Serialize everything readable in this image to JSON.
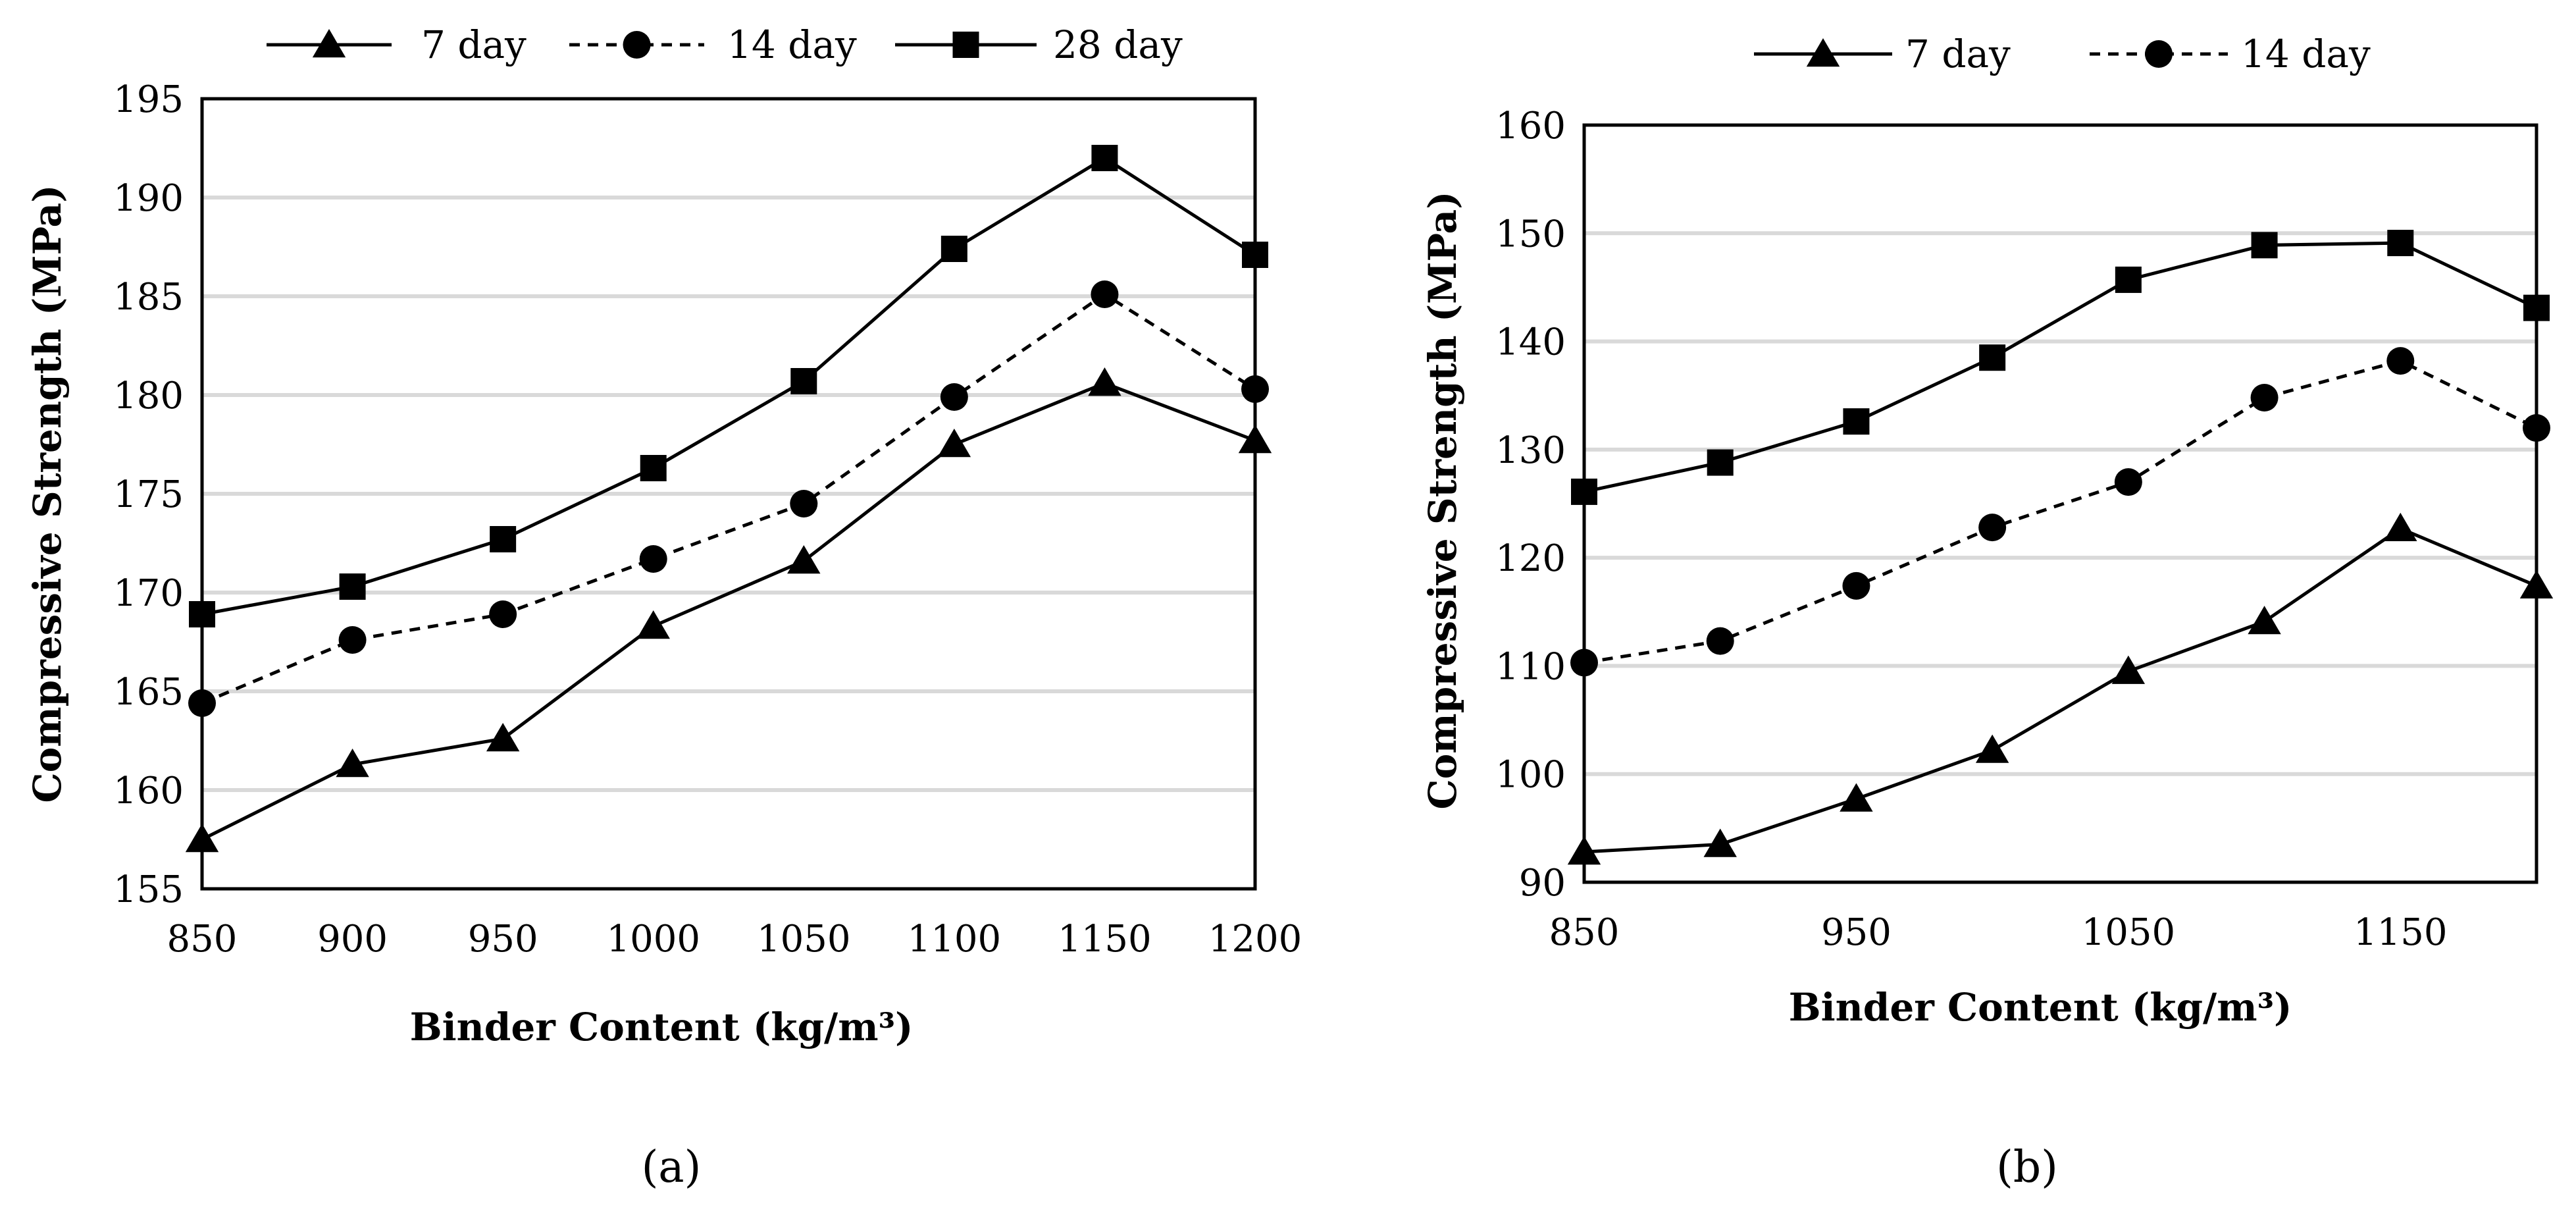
{
  "chart_data": [
    {
      "type": "line",
      "panel_label": "(a)",
      "xlabel": "Binder Content (kg/m³)",
      "ylabel": "Compressive Strength (MPa)",
      "xlim": [
        850,
        1200
      ],
      "ylim": [
        155,
        195
      ],
      "x_ticks": [
        "850",
        "900",
        "950",
        "1000",
        "1050",
        "1100",
        "1150",
        "1200"
      ],
      "y_ticks": [
        "155",
        "160",
        "165",
        "170",
        "175",
        "180",
        "185",
        "190",
        "195"
      ],
      "grid": true,
      "legend_position": "top",
      "x": [
        850,
        900,
        950,
        1000,
        1050,
        1100,
        1150,
        1200
      ],
      "series": [
        {
          "name": "7 day",
          "marker": "triangle",
          "line_style": "solid",
          "values": [
            157.5,
            161.3,
            162.6,
            168.3,
            171.6,
            177.5,
            180.6,
            177.7
          ]
        },
        {
          "name": "14 day",
          "marker": "circle",
          "line_style": "dashed",
          "values": [
            164.4,
            167.6,
            168.9,
            171.7,
            174.5,
            179.9,
            185.1,
            180.3
          ]
        },
        {
          "name": "28 day",
          "marker": "square",
          "line_style": "solid",
          "values": [
            168.9,
            170.3,
            172.7,
            176.3,
            180.7,
            187.4,
            192.0,
            187.1
          ]
        }
      ]
    },
    {
      "type": "line",
      "panel_label": "(b)",
      "xlabel": "Binder Content (kg/m³)",
      "ylabel": "Compressive Strength (MPa)",
      "xlim": [
        850,
        1200
      ],
      "ylim": [
        90,
        160
      ],
      "x_ticks": [
        "850",
        "950",
        "1050",
        "1150"
      ],
      "y_ticks": [
        "90",
        "100",
        "110",
        "120",
        "130",
        "140",
        "150",
        "160"
      ],
      "grid": true,
      "legend_position": "top",
      "x": [
        850,
        900,
        950,
        1000,
        1050,
        1100,
        1150,
        1200
      ],
      "series": [
        {
          "name": "7 day",
          "marker": "triangle",
          "line_style": "solid",
          "values": [
            92.8,
            93.5,
            97.7,
            102.2,
            109.5,
            114.1,
            122.7,
            117.4
          ]
        },
        {
          "name": "14 day",
          "marker": "circle",
          "line_style": "dashed",
          "values": [
            110.3,
            112.3,
            117.4,
            122.8,
            127.0,
            134.8,
            138.2,
            132.0
          ]
        },
        {
          "name": "",
          "marker": "square",
          "line_style": "solid",
          "values": [
            126.1,
            128.8,
            132.6,
            138.5,
            145.7,
            148.9,
            149.1,
            143.1
          ]
        }
      ]
    }
  ]
}
